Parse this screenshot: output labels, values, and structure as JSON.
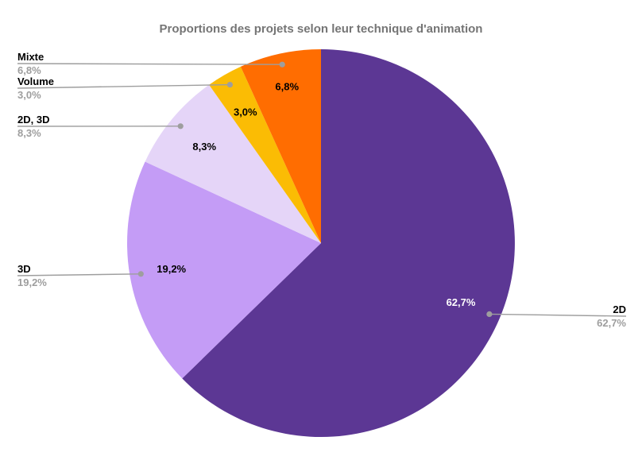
{
  "chart_data": {
    "type": "pie",
    "title": "Proportions des projets selon leur technique d'animation",
    "categories": [
      "2D",
      "3D",
      "2D, 3D",
      "Volume",
      "Mixte"
    ],
    "values": [
      62.7,
      19.2,
      8.3,
      3.0,
      6.8
    ],
    "percent_labels": [
      "62,7%",
      "19,2%",
      "8,3%",
      "3,0%",
      "6,8%"
    ],
    "colors": [
      "#5C3794",
      "#C49CF6",
      "#E5D5F8",
      "#FBBC04",
      "#FF6D01"
    ],
    "inside_label_colors": [
      "#FFFFFF",
      "#000000",
      "#000000",
      "#000000",
      "#000000"
    ],
    "start_angle_deg": 0,
    "direction": "clockwise",
    "legend_position": "callout-labels",
    "background_color": "#FFFFFF",
    "title_color": "#757575",
    "callout_text_color": "#000000",
    "callout_percent_color": "#9E9E9E",
    "callout_line_color": "#9E9E9E"
  }
}
